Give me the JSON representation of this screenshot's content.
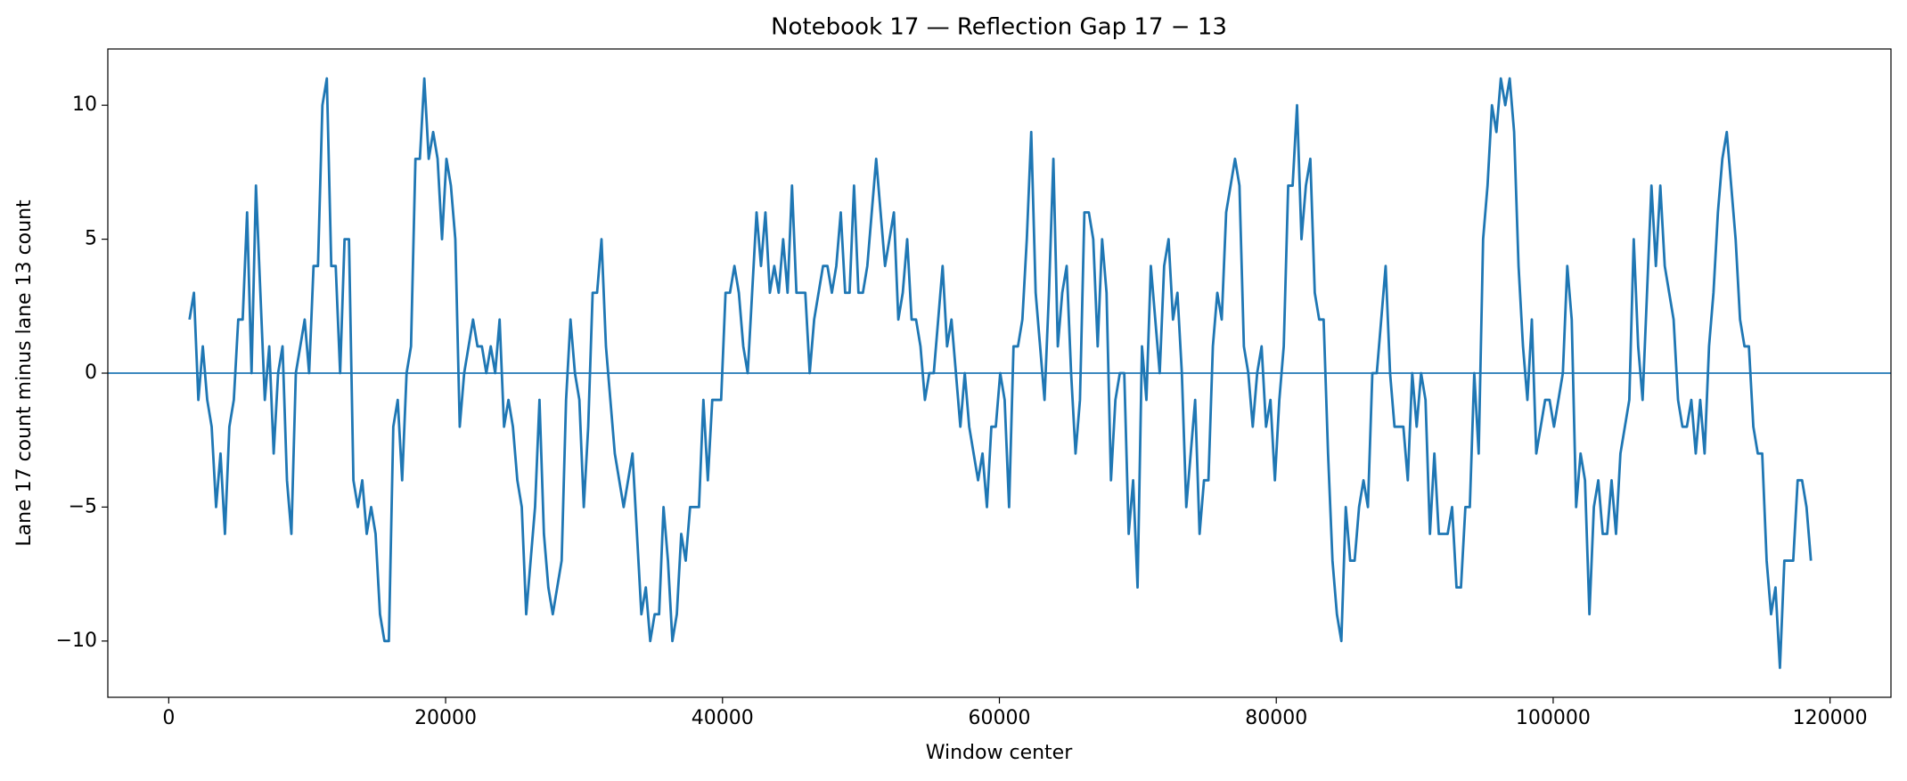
{
  "chart_data": {
    "type": "line",
    "title": "Notebook 17 — Reflection Gap 17 − 13",
    "x_label": "Window center",
    "y_label": "Lane 17 count minus lane 13 count",
    "xlim": [
      -4400,
      124400
    ],
    "ylim": [
      -12.1,
      12.1
    ],
    "xticks": [
      0,
      20000,
      40000,
      60000,
      80000,
      100000,
      120000
    ],
    "yticks": [
      {
        "value": -10,
        "label": "−10"
      },
      {
        "value": -5,
        "label": "−5"
      },
      0,
      5,
      10
    ],
    "hline": 0,
    "hline_color": "#1f77b4",
    "x": [
      1500,
      1820,
      2140,
      2460,
      2780,
      3100,
      3420,
      3740,
      4060,
      4380,
      4700,
      5020,
      5340,
      5660,
      5980,
      6300,
      6620,
      6940,
      7260,
      7580,
      7900,
      8220,
      8540,
      8860,
      9180,
      9500,
      9820,
      10140,
      10460,
      10780,
      11100,
      11420,
      11740,
      12060,
      12380,
      12700,
      13020,
      13340,
      13660,
      13980,
      14300,
      14620,
      14940,
      15260,
      15580,
      15900,
      16220,
      16540,
      16860,
      17180,
      17500,
      17820,
      18140,
      18460,
      18780,
      19100,
      19420,
      19740,
      20060,
      20380,
      20700,
      21020,
      21340,
      21660,
      21980,
      22300,
      22620,
      22940,
      23260,
      23580,
      23900,
      24220,
      24540,
      24860,
      25180,
      25500,
      25820,
      26140,
      26460,
      26780,
      27100,
      27420,
      27740,
      28060,
      28380,
      28700,
      29020,
      29340,
      29660,
      29980,
      30300,
      30620,
      30940,
      31260,
      31580,
      31900,
      32220,
      32540,
      32860,
      33180,
      33500,
      33820,
      34140,
      34460,
      34780,
      35100,
      35420,
      35740,
      36060,
      36380,
      36700,
      37020,
      37340,
      37660,
      37980,
      38300,
      38620,
      38940,
      39260,
      39580,
      39900,
      40220,
      40540,
      40860,
      41180,
      41500,
      41820,
      42140,
      42460,
      42780,
      43100,
      43420,
      43740,
      44060,
      44380,
      44700,
      45020,
      45340,
      45660,
      45980,
      46300,
      46620,
      46940,
      47260,
      47580,
      47900,
      48220,
      48540,
      48860,
      49180,
      49500,
      49820,
      50140,
      50460,
      50780,
      51100,
      51420,
      51740,
      52060,
      52380,
      52700,
      53020,
      53340,
      53660,
      53980,
      54300,
      54620,
      54940,
      55260,
      55580,
      55900,
      56220,
      56540,
      56860,
      57180,
      57500,
      57820,
      58140,
      58460,
      58780,
      59100,
      59420,
      59740,
      60060,
      60380,
      60700,
      61020,
      61340,
      61660,
      61980,
      62300,
      62620,
      62940,
      63260,
      63580,
      63900,
      64220,
      64540,
      64860,
      65180,
      65500,
      65820,
      66140,
      66460,
      66780,
      67100,
      67420,
      67740,
      68060,
      68380,
      68700,
      69020,
      69340,
      69660,
      69980,
      70300,
      70620,
      70940,
      71260,
      71580,
      71900,
      72220,
      72540,
      72860,
      73180,
      73500,
      73820,
      74140,
      74460,
      74780,
      75100,
      75420,
      75740,
      76060,
      76380,
      76700,
      77020,
      77340,
      77660,
      77980,
      78300,
      78620,
      78940,
      79260,
      79580,
      79900,
      80220,
      80540,
      80860,
      81180,
      81500,
      81820,
      82140,
      82460,
      82780,
      83100,
      83420,
      83740,
      84060,
      84380,
      84700,
      85020,
      85340,
      85660,
      85980,
      86300,
      86620,
      86940,
      87260,
      87580,
      87900,
      88220,
      88540,
      88860,
      89180,
      89500,
      89820,
      90140,
      90460,
      90780,
      91100,
      91420,
      91740,
      92060,
      92380,
      92700,
      93020,
      93340,
      93660,
      93980,
      94300,
      94620,
      94940,
      95260,
      95580,
      95900,
      96220,
      96540,
      96860,
      97180,
      97500,
      97820,
      98140,
      98460,
      98780,
      99100,
      99420,
      99740,
      100060,
      100380,
      100700,
      101020,
      101340,
      101660,
      101980,
      102300,
      102620,
      102940,
      103260,
      103580,
      103900,
      104220,
      104540,
      104860,
      105180,
      105500,
      105820,
      106140,
      106460,
      106780,
      107100,
      107420,
      107740,
      108060,
      108380,
      108700,
      109020,
      109340,
      109660,
      109980,
      110300,
      110620,
      110940,
      111260,
      111580,
      111900,
      112220,
      112540,
      112860,
      113180,
      113500,
      113820,
      114140,
      114460,
      114780,
      115100,
      115420,
      115740,
      116060,
      116380,
      116700,
      117020,
      117340,
      117660,
      117980,
      118300,
      118620
    ],
    "series": [
      {
        "color": "#1f77b4",
        "values": [
          2,
          3,
          -1,
          1,
          -1,
          -2,
          -5,
          -3,
          -6,
          -2,
          -1,
          2,
          2,
          6,
          0,
          7,
          3,
          -1,
          1,
          -3,
          0,
          1,
          -4,
          -6,
          0,
          1,
          2,
          0,
          4,
          4,
          10,
          11,
          4,
          4,
          0,
          5,
          5,
          -4,
          -5,
          -4,
          -6,
          -5,
          -6,
          -9,
          -10,
          -10,
          -2,
          -1,
          -4,
          0,
          1,
          8,
          8,
          11,
          8,
          9,
          8,
          5,
          8,
          7,
          5,
          -2,
          0,
          1,
          2,
          1,
          1,
          0,
          1,
          0,
          2,
          -2,
          -1,
          -2,
          -4,
          -5,
          -9,
          -7,
          -5,
          -1,
          -6,
          -8,
          -9,
          -8,
          -7,
          -1,
          2,
          0,
          -1,
          -5,
          -2,
          3,
          3,
          5,
          1,
          -1,
          -3,
          -4,
          -5,
          -4,
          -3,
          -6,
          -9,
          -8,
          -10,
          -9,
          -9,
          -5,
          -7,
          -10,
          -9,
          -6,
          -7,
          -5,
          -5,
          -5,
          -1,
          -4,
          -1,
          -1,
          -1,
          3,
          3,
          4,
          3,
          1,
          0,
          3,
          6,
          4,
          6,
          3,
          4,
          3,
          5,
          3,
          7,
          3,
          3,
          3,
          0,
          2,
          3,
          4,
          4,
          3,
          4,
          6,
          3,
          3,
          7,
          3,
          3,
          4,
          6,
          8,
          6,
          4,
          5,
          6,
          2,
          3,
          5,
          2,
          2,
          1,
          -1,
          0,
          0,
          2,
          4,
          1,
          2,
          0,
          -2,
          0,
          -2,
          -3,
          -4,
          -3,
          -5,
          -2,
          -2,
          0,
          -1,
          -5,
          1,
          1,
          2,
          5,
          9,
          3,
          1,
          -1,
          3,
          8,
          1,
          3,
          4,
          0,
          -3,
          -1,
          6,
          6,
          5,
          1,
          5,
          3,
          -4,
          -1,
          0,
          0,
          -6,
          -4,
          -8,
          1,
          -1,
          4,
          2,
          0,
          4,
          5,
          2,
          3,
          0,
          -5,
          -3,
          -1,
          -6,
          -4,
          -4,
          1,
          3,
          2,
          6,
          7,
          8,
          7,
          1,
          0,
          -2,
          0,
          1,
          -2,
          -1,
          -4,
          -1,
          1,
          7,
          7,
          10,
          5,
          7,
          8,
          3,
          2,
          2,
          -3,
          -7,
          -9,
          -10,
          -5,
          -7,
          -7,
          -5,
          -4,
          -5,
          0,
          0,
          2,
          4,
          0,
          -2,
          -2,
          -2,
          -4,
          0,
          -2,
          0,
          -1,
          -6,
          -3,
          -6,
          -6,
          -6,
          -5,
          -8,
          -8,
          -5,
          -5,
          0,
          -3,
          5,
          7,
          10,
          9,
          11,
          10,
          11,
          9,
          4,
          1,
          -1,
          2,
          -3,
          -2,
          -1,
          -1,
          -2,
          -1,
          0,
          4,
          2,
          -5,
          -3,
          -4,
          -9,
          -5,
          -4,
          -6,
          -6,
          -4,
          -6,
          -3,
          -2,
          -1,
          5,
          1,
          -1,
          3,
          7,
          4,
          7,
          4,
          3,
          2,
          -1,
          -2,
          -2,
          -1,
          -3,
          -1,
          -3,
          1,
          3,
          6,
          8,
          9,
          7,
          5,
          2,
          1,
          1,
          -2,
          -3,
          -3,
          -7,
          -9,
          -8,
          -11,
          -7,
          -7,
          -7,
          -4,
          -4,
          -5,
          -7
        ]
      }
    ]
  }
}
